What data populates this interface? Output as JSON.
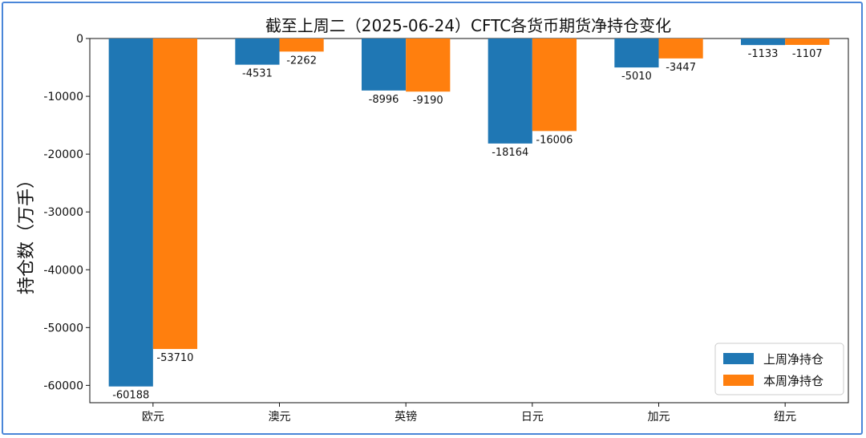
{
  "chart_data": {
    "type": "bar",
    "title": "截至上周二（2025-06-24）CFTC各货币期货净持仓变化",
    "xlabel": "",
    "ylabel": "持仓数（万手）",
    "categories": [
      "欧元",
      "澳元",
      "英镑",
      "日元",
      "加元",
      "纽元"
    ],
    "series": [
      {
        "name": "上周净持仓",
        "color": "#1f77b4",
        "values": [
          -60188,
          -4531,
          -8996,
          -18164,
          -5010,
          -1133
        ]
      },
      {
        "name": "本周净持仓",
        "color": "#ff7f0e",
        "values": [
          -53710,
          -2262,
          -9190,
          -16006,
          -3447,
          -1107
        ]
      }
    ],
    "ylim": [
      -63000,
      0
    ],
    "yticks": [
      0,
      -10000,
      -20000,
      -30000,
      -40000,
      -50000,
      -60000
    ],
    "ytick_labels": [
      "0",
      "-10000",
      "-20000",
      "-30000",
      "-40000",
      "-50000",
      "-60000"
    ],
    "grid": false,
    "legend_position": "lower-right"
  }
}
